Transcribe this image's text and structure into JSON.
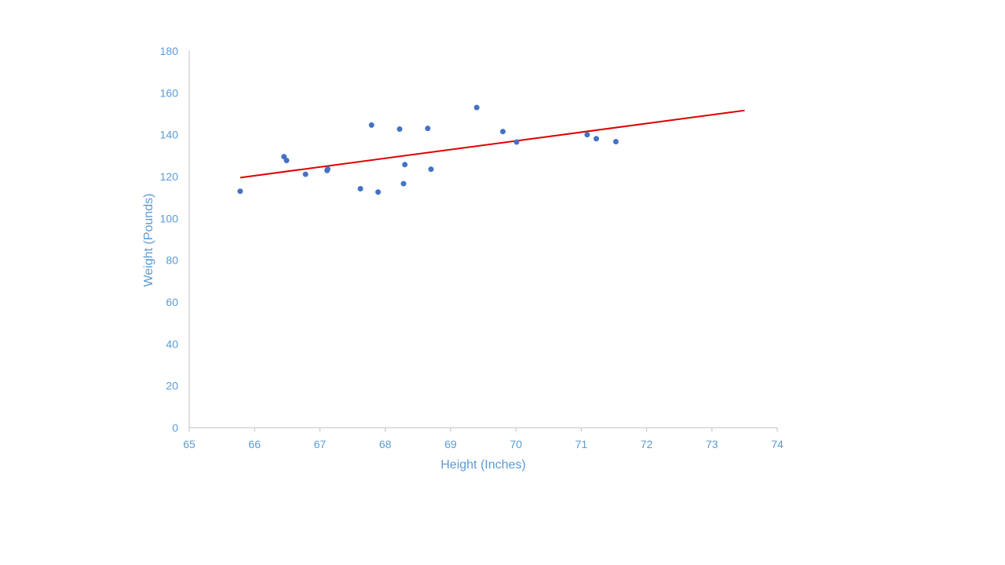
{
  "chart_data": {
    "type": "scatter",
    "title": "",
    "xlabel": "Height (Inches)",
    "ylabel": "Weight (Pounds)",
    "xlim": [
      65,
      74
    ],
    "ylim": [
      0,
      180
    ],
    "x_ticks": [
      "65",
      "66",
      "67",
      "68",
      "69",
      "70",
      "71",
      "72",
      "73",
      "74"
    ],
    "y_ticks": [
      "0",
      "20",
      "40",
      "60",
      "80",
      "100",
      "120",
      "140",
      "160",
      "180"
    ],
    "grid": false,
    "legend": "none",
    "series": [
      {
        "points": [
          {
            "x": 65.78,
            "y": 112.99
          },
          {
            "x": 66.45,
            "y": 129.5
          },
          {
            "x": 66.49,
            "y": 127.7
          },
          {
            "x": 66.78,
            "y": 121.1
          },
          {
            "x": 67.12,
            "y": 123.6
          },
          {
            "x": 67.11,
            "y": 122.9
          },
          {
            "x": 67.62,
            "y": 114.2
          },
          {
            "x": 67.79,
            "y": 144.6
          },
          {
            "x": 67.89,
            "y": 112.6
          },
          {
            "x": 68.22,
            "y": 142.7
          },
          {
            "x": 68.28,
            "y": 116.6
          },
          {
            "x": 68.3,
            "y": 125.7
          },
          {
            "x": 68.65,
            "y": 143.0
          },
          {
            "x": 68.7,
            "y": 123.5
          },
          {
            "x": 69.4,
            "y": 153.0
          },
          {
            "x": 69.8,
            "y": 141.5
          },
          {
            "x": 70.01,
            "y": 136.5
          },
          {
            "x": 71.09,
            "y": 140.0
          },
          {
            "x": 71.23,
            "y": 138.1
          },
          {
            "x": 71.53,
            "y": 136.7
          }
        ]
      }
    ],
    "trendline": {
      "x": [
        65.78,
        73.5
      ],
      "y": [
        119.5,
        151.6
      ]
    },
    "colors": {
      "points": "#4472C4",
      "trendline": "#E00000",
      "axis": "#BFBFBF",
      "text": "#5B9BD5"
    }
  }
}
